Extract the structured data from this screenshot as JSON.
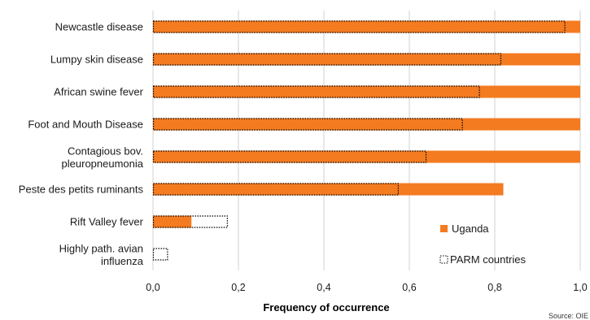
{
  "chart_data": {
    "type": "bar",
    "orientation": "horizontal",
    "categories": [
      "Newcastle disease",
      "Lumpy skin disease",
      "African swine fever",
      "Foot and Mouth Disease",
      "Contagious bov. pleuropneumonia",
      "Peste des petits ruminants",
      "Rift Valley fever",
      "Highly path. avian influenza"
    ],
    "series": [
      {
        "name": "Uganda",
        "style": "filled",
        "color": "#f47b20",
        "values": [
          1.0,
          1.0,
          1.0,
          1.0,
          1.0,
          0.82,
          0.09,
          0.0
        ]
      },
      {
        "name": "PARM countries",
        "style": "dotted-outline",
        "color": "#000000",
        "values": [
          0.965,
          0.815,
          0.765,
          0.725,
          0.64,
          0.575,
          0.175,
          0.035
        ]
      }
    ],
    "xlabel": "Frequency of occurrence",
    "xlim": [
      0,
      1
    ],
    "xticks": [
      "0,0",
      "0,2",
      "0,4",
      "0,6",
      "0,8",
      "1,0"
    ],
    "grid": "vertical",
    "legend_position": "bottom-right",
    "source": "Source: OIE"
  }
}
